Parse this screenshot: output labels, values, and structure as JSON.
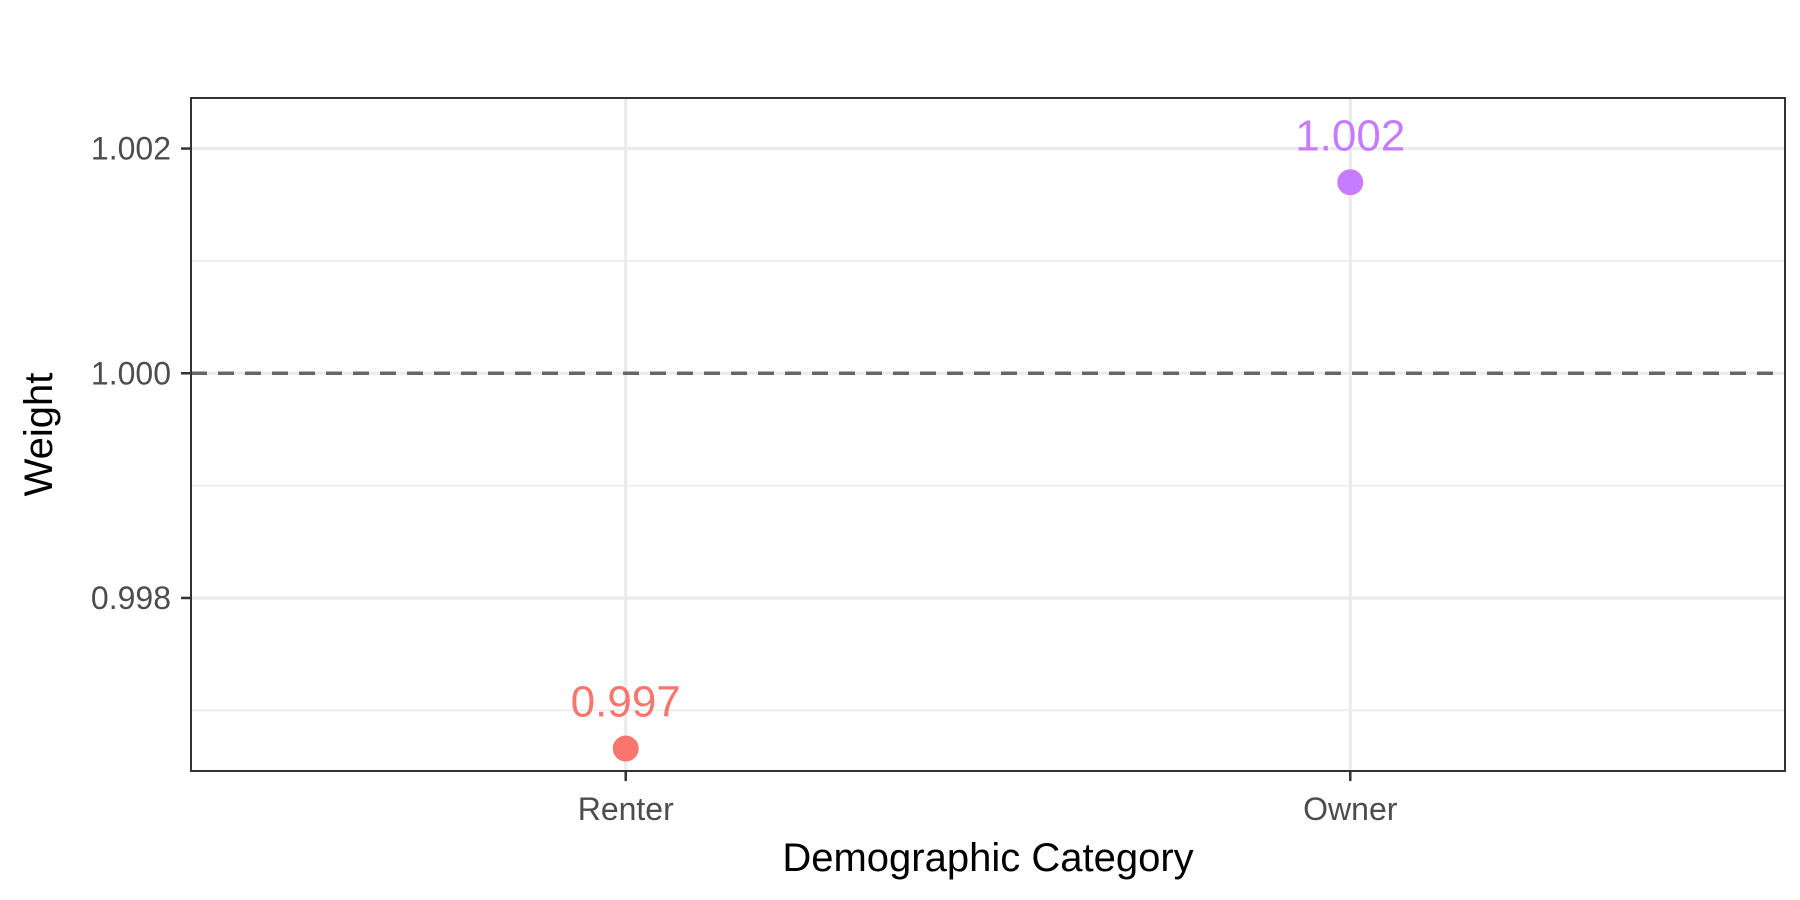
{
  "chart_data": {
    "type": "scatter",
    "title": "",
    "xlabel": "Demographic Category",
    "ylabel": "Weight",
    "categories": [
      "Renter",
      "Owner"
    ],
    "values": [
      0.99666,
      1.0017
    ],
    "data_labels": [
      "0.997",
      "1.002"
    ],
    "point_colors": [
      "#F8766D",
      "#C77CFF"
    ],
    "ylim": [
      0.99646,
      1.00245
    ],
    "y_ticks": [
      0.998,
      1.0,
      1.002
    ],
    "y_tick_labels": [
      "0.998",
      "1.000",
      "1.002"
    ],
    "reference_line": {
      "y": 1.0,
      "style": "dashed",
      "color": "#666666"
    },
    "grid": true,
    "legend": "none",
    "theme": {
      "panel_border": "#333333",
      "grid_color": "#ebebeb",
      "tick_text": "#4d4d4d"
    }
  }
}
